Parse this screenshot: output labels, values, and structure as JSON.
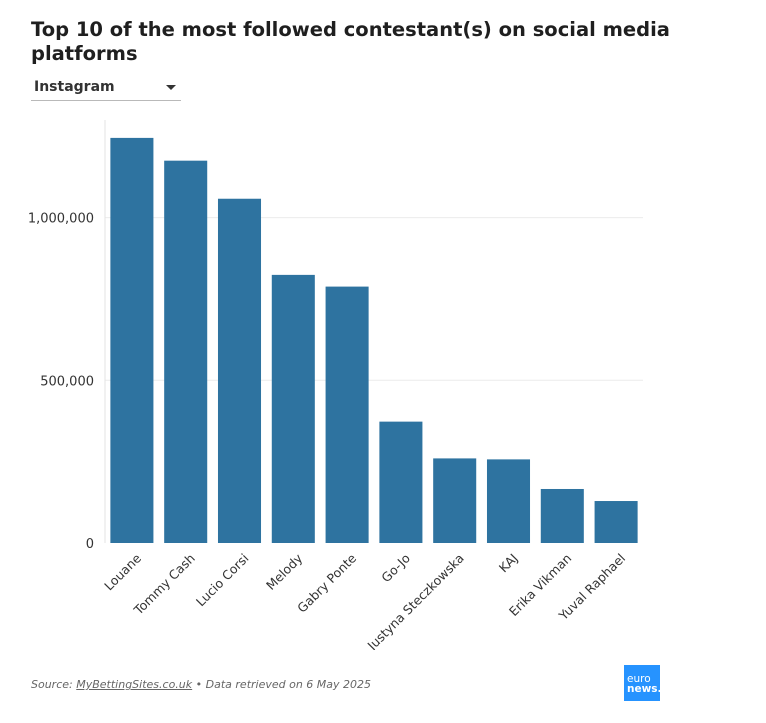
{
  "header": {
    "title": "Top 10 of the most followed contestant(s) on social media platforms"
  },
  "filter": {
    "selected": "Instagram"
  },
  "chart_data": {
    "type": "bar",
    "title": "Top 10 of the most followed contestant(s) on social media platforms",
    "xlabel": "",
    "ylabel": "",
    "categories": [
      "Louane",
      "Tommy Cash",
      "Lucio Corsi",
      "Melody",
      "Gabry Ponte",
      "Go-Jo",
      "Justyna Steczkowska",
      "KAJ",
      "Erika Vikman",
      "Yuval Raphael"
    ],
    "values": [
      1245000,
      1175000,
      1058000,
      824000,
      788000,
      373000,
      260000,
      257000,
      166000,
      129000
    ],
    "ylim": [
      0,
      1300000
    ],
    "yticks": [
      0,
      500000,
      1000000
    ],
    "ytick_labels": [
      "0",
      "500,000",
      "1,000,000"
    ],
    "grid": true,
    "bar_color": "#2e73a0"
  },
  "footer": {
    "source_prefix": "Source: ",
    "source_link": "MyBettingSites.co.uk",
    "source_suffix": " • Data retrieved on 6 May 2025"
  },
  "logo": {
    "line1": "euro",
    "line2": "news."
  }
}
